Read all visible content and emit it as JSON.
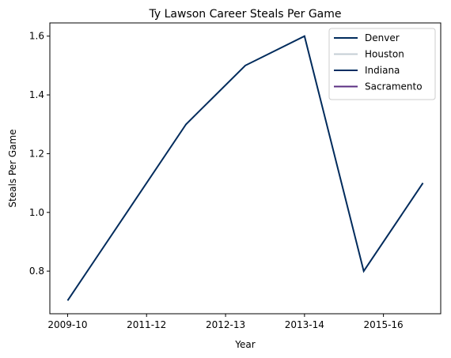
{
  "chart_data": {
    "type": "line",
    "title": "Ty Lawson Career Steals Per Game",
    "xlabel": "Year",
    "ylabel": "Steals Per Game",
    "x_tick_labels": [
      "2009-10",
      "2011-12",
      "2012-13",
      "2013-14",
      "2015-16"
    ],
    "x": [
      0,
      1,
      2,
      3,
      4,
      5,
      6
    ],
    "x_tick_positions": [
      0,
      1.333,
      2.667,
      4,
      5.333
    ],
    "xlim": [
      -0.3,
      6.3
    ],
    "ylim": [
      0.655,
      1.645
    ],
    "y_ticks": [
      0.8,
      1.0,
      1.2,
      1.4,
      1.6
    ],
    "y_tick_labels": [
      "0.8",
      "1.0",
      "1.2",
      "1.4",
      "1.6"
    ],
    "legend_position": "top-right",
    "series": [
      {
        "name": "Denver",
        "color": "#002B5C",
        "x": [
          0,
          1,
          2,
          3,
          4,
          5,
          6
        ],
        "values": [
          0.7,
          1.0,
          1.3,
          1.5,
          1.6,
          0.8,
          1.1
        ]
      },
      {
        "name": "Houston",
        "color": "#C4CED4",
        "x": [],
        "values": []
      },
      {
        "name": "Indiana",
        "color": "#002D62",
        "x": [],
        "values": []
      },
      {
        "name": "Sacramento",
        "color": "#5A2D81",
        "x": [],
        "values": []
      }
    ]
  }
}
